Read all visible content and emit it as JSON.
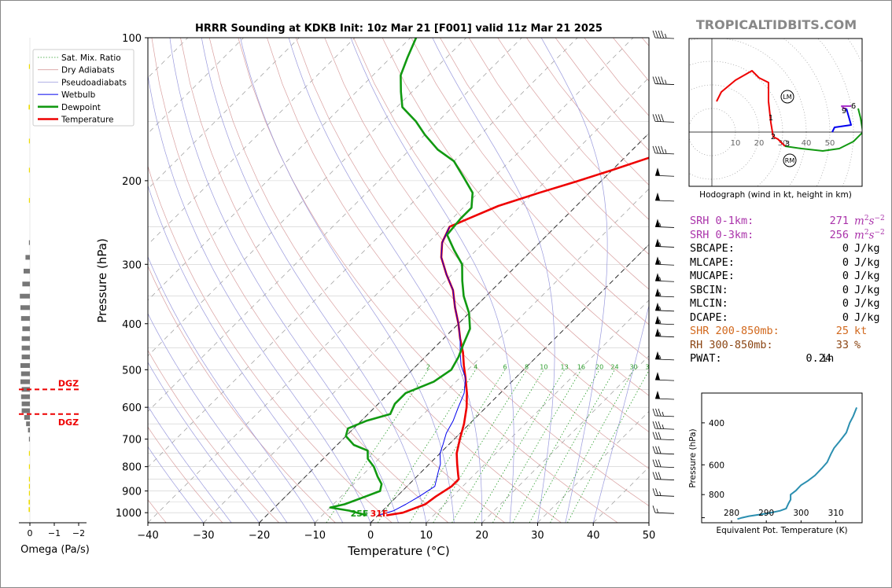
{
  "chart_data": [
    {
      "type": "line",
      "subtype": "skew-t log-p sounding",
      "title": "HRRR Sounding at KDKB Init: 10z Mar 21 [F001] valid 11z Mar 21 2025",
      "xlabel": "Temperature (°C)",
      "ylabel": "Pressure (hPa)",
      "xlim": [
        -40,
        50
      ],
      "ylim": [
        1050,
        100
      ],
      "yscale": "log",
      "x_ticks": [
        -40,
        -30,
        -20,
        -10,
        0,
        10,
        20,
        30,
        40,
        50
      ],
      "y_ticks": [
        100,
        200,
        300,
        400,
        500,
        600,
        700,
        800,
        900,
        1000
      ],
      "legend": [
        "Sat. Mix. Ratio",
        "Dry Adiabats",
        "Pseudoadiabats",
        "Wetbulb",
        "Dewpoint",
        "Temperature"
      ],
      "legend_placement": "top-left",
      "mixing_ratio_labels": [
        "2",
        "4",
        "6",
        "8",
        "10",
        "13",
        "16",
        "20",
        "24",
        "30",
        "36"
      ],
      "surface_labels": {
        "dewpoint": "25F",
        "temperature": "31F"
      },
      "series": [
        {
          "name": "Temperature",
          "color": "#ee0000",
          "points": [
            [
              1.5,
              1013
            ],
            [
              4,
              1000
            ],
            [
              6.5,
              960
            ],
            [
              7,
              925
            ],
            [
              8,
              880
            ],
            [
              8,
              850
            ],
            [
              7,
              830
            ],
            [
              5,
              790
            ],
            [
              3,
              750
            ],
            [
              1,
              700
            ],
            [
              -1,
              650
            ],
            [
              -3.5,
              600
            ],
            [
              -6,
              560
            ],
            [
              -9,
              520
            ],
            [
              -11.5,
              490
            ],
            [
              -14,
              460
            ],
            [
              -17,
              430
            ],
            [
              -20,
              400
            ],
            [
              -23.5,
              370
            ],
            [
              -27,
              340
            ],
            [
              -31,
              315
            ],
            [
              -35,
              290
            ],
            [
              -37.5,
              270
            ],
            [
              -39,
              250
            ],
            [
              -37,
              240
            ],
            [
              -34,
              226
            ],
            [
              -29,
              212
            ],
            [
              -24.5,
              201
            ],
            [
              -20,
              190
            ],
            [
              -16,
              180
            ],
            [
              -12,
              171
            ],
            [
              -9,
              162
            ],
            [
              -6,
              155
            ],
            [
              -2,
              146
            ],
            [
              3,
              136
            ],
            [
              6,
              128
            ],
            [
              7,
              118
            ],
            [
              9,
              110
            ],
            [
              11,
              103
            ],
            [
              12,
              100
            ]
          ]
        },
        {
          "name": "Wetbulb",
          "color": "#0000ee",
          "points": [
            [
              0,
              1013
            ],
            [
              2,
              990
            ],
            [
              3,
              960
            ],
            [
              4,
              925
            ],
            [
              5,
              880
            ],
            [
              4,
              850
            ],
            [
              3,
              820
            ],
            [
              2,
              790
            ],
            [
              0,
              750
            ],
            [
              -1,
              720
            ],
            [
              -2.5,
              680
            ],
            [
              -3.5,
              640
            ],
            [
              -5,
              600
            ],
            [
              -6.5,
              560
            ],
            [
              -9,
              520
            ],
            [
              -12,
              490
            ],
            [
              -14.5,
              460
            ],
            [
              -17,
              430
            ],
            [
              -20,
              400
            ],
            [
              -23.5,
              370
            ],
            [
              -27,
              340
            ],
            [
              -31,
              315
            ],
            [
              -35,
              290
            ],
            [
              -37.5,
              270
            ],
            [
              -39,
              250
            ]
          ]
        },
        {
          "name": "Dewpoint",
          "color": "#119911",
          "points": [
            [
              -2,
              1013
            ],
            [
              -6,
              990
            ],
            [
              -10,
              975
            ],
            [
              -8,
              960
            ],
            [
              -6,
              930
            ],
            [
              -4,
              900
            ],
            [
              -5,
              870
            ],
            [
              -7,
              840
            ],
            [
              -9.5,
              800
            ],
            [
              -12,
              770
            ],
            [
              -13.5,
              740
            ],
            [
              -17,
              720
            ],
            [
              -20,
              690
            ],
            [
              -21,
              665
            ],
            [
              -19,
              640
            ],
            [
              -16,
              620
            ],
            [
              -17,
              590
            ],
            [
              -17,
              560
            ],
            [
              -14,
              530
            ],
            [
              -13,
              500
            ],
            [
              -14,
              470
            ],
            [
              -15.5,
              440
            ],
            [
              -17,
              410
            ],
            [
              -20,
              380
            ],
            [
              -24,
              350
            ],
            [
              -27,
              325
            ],
            [
              -30,
              300
            ],
            [
              -34,
              280
            ],
            [
              -38,
              260
            ],
            [
              -38.5,
              240
            ],
            [
              -38.5,
              228
            ],
            [
              -41,
              212
            ],
            [
              -45,
              198
            ],
            [
              -50,
              182
            ],
            [
              -55,
              172
            ],
            [
              -60,
              160
            ],
            [
              -64,
              150
            ],
            [
              -69,
              140
            ],
            [
              -72,
              130
            ],
            [
              -75,
              120
            ],
            [
              -77,
              110
            ],
            [
              -79,
              100
            ]
          ]
        }
      ]
    },
    {
      "type": "bar",
      "subtype": "omega profile",
      "xlabel": "Omega (Pa/s)",
      "x_ticks": [
        "0",
        "−1",
        "−2"
      ],
      "dgz_label": "DGZ",
      "dgz_top_hpa": 550,
      "dgz_bottom_hpa": 620,
      "pressure": [
        115,
        140,
        165,
        190,
        220,
        270,
        290,
        310,
        330,
        350,
        370,
        390,
        410,
        430,
        450,
        470,
        490,
        510,
        530,
        550,
        570,
        590,
        610,
        630,
        650,
        670,
        700,
        750,
        800,
        850,
        880,
        910,
        950,
        985
      ],
      "values": [
        0.1,
        0.2,
        0.1,
        0.1,
        0.05,
        0.1,
        0.7,
        1.0,
        1.2,
        1.6,
        1.5,
        1.4,
        1.2,
        1.3,
        1.3,
        1.3,
        1.5,
        1.4,
        1.5,
        1.3,
        1.4,
        1.3,
        1.3,
        0.9,
        0.6,
        0.3,
        0.1,
        0.1,
        0.1,
        0.1,
        0.1,
        0.1,
        0.2,
        0.2
      ]
    },
    {
      "type": "line",
      "subtype": "hodograph",
      "caption": "Hodograph (wind in kt, height in km)",
      "site_label": "TROPICALTIDBITS.COM",
      "ring_labels": [
        "10",
        "20",
        "30",
        "40",
        "50"
      ],
      "height_labels": [
        "1",
        "2",
        "3",
        "6",
        "9"
      ],
      "storm_motion_labels": [
        "LM",
        "RM"
      ],
      "segments": [
        {
          "layer": "0-3 km",
          "color": "#ee0000",
          "points": [
            [
              2,
              13
            ],
            [
              4,
              17
            ],
            [
              10,
              22
            ],
            [
              17,
              26
            ],
            [
              20,
              23
            ],
            [
              24,
              21
            ],
            [
              24,
              13
            ],
            [
              25,
              4
            ],
            [
              26,
              -2
            ],
            [
              28,
              -3
            ],
            [
              31,
              -6
            ]
          ]
        },
        {
          "layer": "3-6 km",
          "color": "#119911",
          "points": [
            [
              31,
              -6
            ],
            [
              38,
              -7
            ],
            [
              47,
              -8
            ],
            [
              54,
              -7
            ],
            [
              60,
              -4
            ],
            [
              64,
              0
            ],
            [
              63,
              6
            ],
            [
              62,
              10
            ]
          ]
        },
        {
          "layer": "6-9 km",
          "color": "#0000ee",
          "points": [
            [
              51,
              0
            ],
            [
              52,
              2
            ],
            [
              59,
              3
            ],
            [
              57,
              10
            ]
          ]
        },
        {
          "layer": "9+ km",
          "color": "#aa33cc",
          "points": [
            [
              57,
              10
            ],
            [
              56,
              10
            ],
            [
              55,
              11
            ],
            [
              59,
              11
            ]
          ]
        }
      ],
      "storm_motion": {
        "LM": [
          32,
          15
        ],
        "RM": [
          33,
          -12
        ]
      }
    },
    {
      "type": "line",
      "subtype": "theta-e profile",
      "xlabel": "Equivalent Pot. Temperature (K)",
      "ylabel": "Pressure (hPa)",
      "x_ticks": [
        "280",
        "290",
        "300",
        "310"
      ],
      "y_ticks": [
        "400",
        "600",
        "800"
      ],
      "color": "#2b8fb0",
      "points": [
        [
          281.7,
          1013
        ],
        [
          283,
          1000
        ],
        [
          285,
          985
        ],
        [
          288,
          970
        ],
        [
          291,
          955
        ],
        [
          294,
          935
        ],
        [
          295.7,
          915
        ],
        [
          296.4,
          870
        ],
        [
          297,
          840
        ],
        [
          297,
          800
        ],
        [
          298.5,
          770
        ],
        [
          300,
          730
        ],
        [
          302,
          700
        ],
        [
          304,
          665
        ],
        [
          306,
          620
        ],
        [
          307.5,
          585
        ],
        [
          308.6,
          540
        ],
        [
          309.5,
          510
        ],
        [
          311,
          480
        ],
        [
          312,
          460
        ],
        [
          313,
          440
        ],
        [
          314,
          400
        ],
        [
          315,
          375
        ],
        [
          316,
          345
        ]
      ]
    }
  ],
  "parameters": [
    {
      "label": "SRH 0-1km:",
      "value": "271",
      "unit_base": "m",
      "unit_sup1": "2",
      "unit_mid": "s",
      "unit_sup2": "−2",
      "color": "#aa33aa"
    },
    {
      "label": "SRH 0-3km:",
      "value": "256",
      "unit_base": "m",
      "unit_sup1": "2",
      "unit_mid": "s",
      "unit_sup2": "−2",
      "color": "#aa33aa"
    },
    {
      "label": "SBCAPE:",
      "value": "0",
      "unit": "J/kg",
      "color": "#000000"
    },
    {
      "label": "MLCAPE:",
      "value": "0",
      "unit": "J/kg",
      "color": "#000000"
    },
    {
      "label": "MUCAPE:",
      "value": "0",
      "unit": "J/kg",
      "color": "#000000"
    },
    {
      "label": "SBCIN:",
      "value": "0",
      "unit": "J/kg",
      "color": "#000000"
    },
    {
      "label": "MLCIN:",
      "value": "0",
      "unit": "J/kg",
      "color": "#000000"
    },
    {
      "label": "DCAPE:",
      "value": "0",
      "unit": "J/kg",
      "color": "#000000"
    },
    {
      "label": "SHR 200-850mb:",
      "value": "25",
      "unit": "kt",
      "color": "#d2691e"
    },
    {
      "label": "RH 300-850mb:",
      "value": "33",
      "unit": "%",
      "color": "#8b4513"
    },
    {
      "label": "PWAT:",
      "value": "0.24",
      "unit": "in",
      "color": "#000000"
    }
  ],
  "wind_barbs": [
    {
      "p": 100,
      "speed": 45
    },
    {
      "p": 125,
      "speed": 45
    },
    {
      "p": 150,
      "speed": 40
    },
    {
      "p": 175,
      "speed": 45
    },
    {
      "p": 195,
      "speed": 50
    },
    {
      "p": 220,
      "speed": 50
    },
    {
      "p": 250,
      "speed": 55
    },
    {
      "p": 275,
      "speed": 55
    },
    {
      "p": 300,
      "speed": 55
    },
    {
      "p": 325,
      "speed": 55
    },
    {
      "p": 350,
      "speed": 55
    },
    {
      "p": 375,
      "speed": 55
    },
    {
      "p": 400,
      "speed": 55
    },
    {
      "p": 425,
      "speed": 55
    },
    {
      "p": 475,
      "speed": 55
    },
    {
      "p": 525,
      "speed": 50
    },
    {
      "p": 575,
      "speed": 50
    },
    {
      "p": 625,
      "speed": 35
    },
    {
      "p": 665,
      "speed": 35
    },
    {
      "p": 700,
      "speed": 30
    },
    {
      "p": 750,
      "speed": 30
    },
    {
      "p": 800,
      "speed": 30
    },
    {
      "p": 850,
      "speed": 30
    },
    {
      "p": 920,
      "speed": 25
    },
    {
      "p": 1000,
      "speed": 15
    }
  ],
  "colors": {
    "temperature": "#ee0000",
    "dewpoint": "#119911",
    "wetbulb": "#0000ee"
  }
}
